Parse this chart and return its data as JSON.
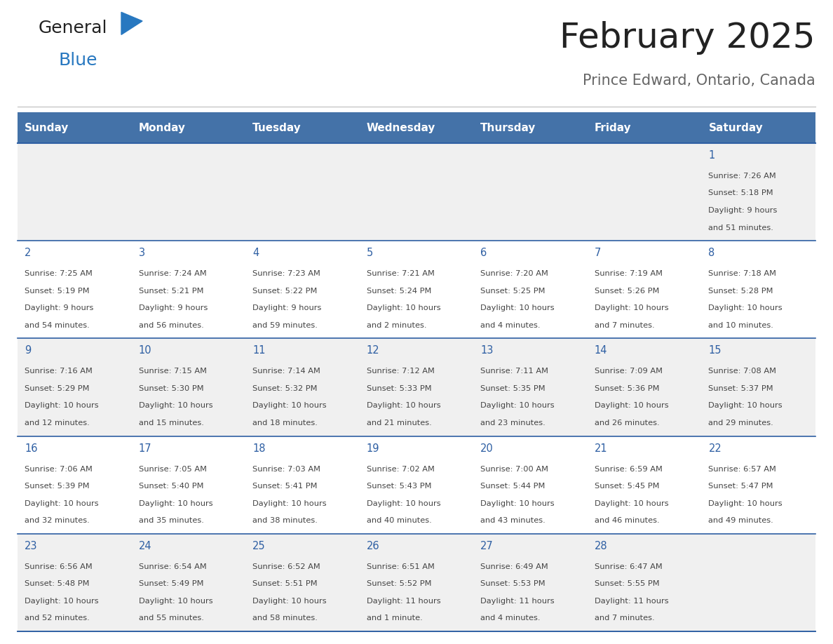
{
  "title": "February 2025",
  "subtitle": "Prince Edward, Ontario, Canada",
  "days_of_week": [
    "Sunday",
    "Monday",
    "Tuesday",
    "Wednesday",
    "Thursday",
    "Friday",
    "Saturday"
  ],
  "header_bg": "#4472a8",
  "header_text": "#ffffff",
  "row_bg_light": "#f0f0f0",
  "row_bg_white": "#ffffff",
  "border_color": "#2e5fa3",
  "day_number_color": "#2e5fa3",
  "text_color": "#444444",
  "title_color": "#222222",
  "subtitle_color": "#666666",
  "logo_general_color": "#222222",
  "logo_blue_color": "#2878c0",
  "separator_color": "#bbbbbb",
  "calendar_data": [
    {
      "day": 1,
      "col": 6,
      "row": 0,
      "sunrise": "7:26 AM",
      "sunset": "5:18 PM",
      "daylight": "9 hours and 51 minutes."
    },
    {
      "day": 2,
      "col": 0,
      "row": 1,
      "sunrise": "7:25 AM",
      "sunset": "5:19 PM",
      "daylight": "9 hours and 54 minutes."
    },
    {
      "day": 3,
      "col": 1,
      "row": 1,
      "sunrise": "7:24 AM",
      "sunset": "5:21 PM",
      "daylight": "9 hours and 56 minutes."
    },
    {
      "day": 4,
      "col": 2,
      "row": 1,
      "sunrise": "7:23 AM",
      "sunset": "5:22 PM",
      "daylight": "9 hours and 59 minutes."
    },
    {
      "day": 5,
      "col": 3,
      "row": 1,
      "sunrise": "7:21 AM",
      "sunset": "5:24 PM",
      "daylight": "10 hours and 2 minutes."
    },
    {
      "day": 6,
      "col": 4,
      "row": 1,
      "sunrise": "7:20 AM",
      "sunset": "5:25 PM",
      "daylight": "10 hours and 4 minutes."
    },
    {
      "day": 7,
      "col": 5,
      "row": 1,
      "sunrise": "7:19 AM",
      "sunset": "5:26 PM",
      "daylight": "10 hours and 7 minutes."
    },
    {
      "day": 8,
      "col": 6,
      "row": 1,
      "sunrise": "7:18 AM",
      "sunset": "5:28 PM",
      "daylight": "10 hours and 10 minutes."
    },
    {
      "day": 9,
      "col": 0,
      "row": 2,
      "sunrise": "7:16 AM",
      "sunset": "5:29 PM",
      "daylight": "10 hours and 12 minutes."
    },
    {
      "day": 10,
      "col": 1,
      "row": 2,
      "sunrise": "7:15 AM",
      "sunset": "5:30 PM",
      "daylight": "10 hours and 15 minutes."
    },
    {
      "day": 11,
      "col": 2,
      "row": 2,
      "sunrise": "7:14 AM",
      "sunset": "5:32 PM",
      "daylight": "10 hours and 18 minutes."
    },
    {
      "day": 12,
      "col": 3,
      "row": 2,
      "sunrise": "7:12 AM",
      "sunset": "5:33 PM",
      "daylight": "10 hours and 21 minutes."
    },
    {
      "day": 13,
      "col": 4,
      "row": 2,
      "sunrise": "7:11 AM",
      "sunset": "5:35 PM",
      "daylight": "10 hours and 23 minutes."
    },
    {
      "day": 14,
      "col": 5,
      "row": 2,
      "sunrise": "7:09 AM",
      "sunset": "5:36 PM",
      "daylight": "10 hours and 26 minutes."
    },
    {
      "day": 15,
      "col": 6,
      "row": 2,
      "sunrise": "7:08 AM",
      "sunset": "5:37 PM",
      "daylight": "10 hours and 29 minutes."
    },
    {
      "day": 16,
      "col": 0,
      "row": 3,
      "sunrise": "7:06 AM",
      "sunset": "5:39 PM",
      "daylight": "10 hours and 32 minutes."
    },
    {
      "day": 17,
      "col": 1,
      "row": 3,
      "sunrise": "7:05 AM",
      "sunset": "5:40 PM",
      "daylight": "10 hours and 35 minutes."
    },
    {
      "day": 18,
      "col": 2,
      "row": 3,
      "sunrise": "7:03 AM",
      "sunset": "5:41 PM",
      "daylight": "10 hours and 38 minutes."
    },
    {
      "day": 19,
      "col": 3,
      "row": 3,
      "sunrise": "7:02 AM",
      "sunset": "5:43 PM",
      "daylight": "10 hours and 40 minutes."
    },
    {
      "day": 20,
      "col": 4,
      "row": 3,
      "sunrise": "7:00 AM",
      "sunset": "5:44 PM",
      "daylight": "10 hours and 43 minutes."
    },
    {
      "day": 21,
      "col": 5,
      "row": 3,
      "sunrise": "6:59 AM",
      "sunset": "5:45 PM",
      "daylight": "10 hours and 46 minutes."
    },
    {
      "day": 22,
      "col": 6,
      "row": 3,
      "sunrise": "6:57 AM",
      "sunset": "5:47 PM",
      "daylight": "10 hours and 49 minutes."
    },
    {
      "day": 23,
      "col": 0,
      "row": 4,
      "sunrise": "6:56 AM",
      "sunset": "5:48 PM",
      "daylight": "10 hours and 52 minutes."
    },
    {
      "day": 24,
      "col": 1,
      "row": 4,
      "sunrise": "6:54 AM",
      "sunset": "5:49 PM",
      "daylight": "10 hours and 55 minutes."
    },
    {
      "day": 25,
      "col": 2,
      "row": 4,
      "sunrise": "6:52 AM",
      "sunset": "5:51 PM",
      "daylight": "10 hours and 58 minutes."
    },
    {
      "day": 26,
      "col": 3,
      "row": 4,
      "sunrise": "6:51 AM",
      "sunset": "5:52 PM",
      "daylight": "11 hours and 1 minute."
    },
    {
      "day": 27,
      "col": 4,
      "row": 4,
      "sunrise": "6:49 AM",
      "sunset": "5:53 PM",
      "daylight": "11 hours and 4 minutes."
    },
    {
      "day": 28,
      "col": 5,
      "row": 4,
      "sunrise": "6:47 AM",
      "sunset": "5:55 PM",
      "daylight": "11 hours and 7 minutes."
    }
  ]
}
